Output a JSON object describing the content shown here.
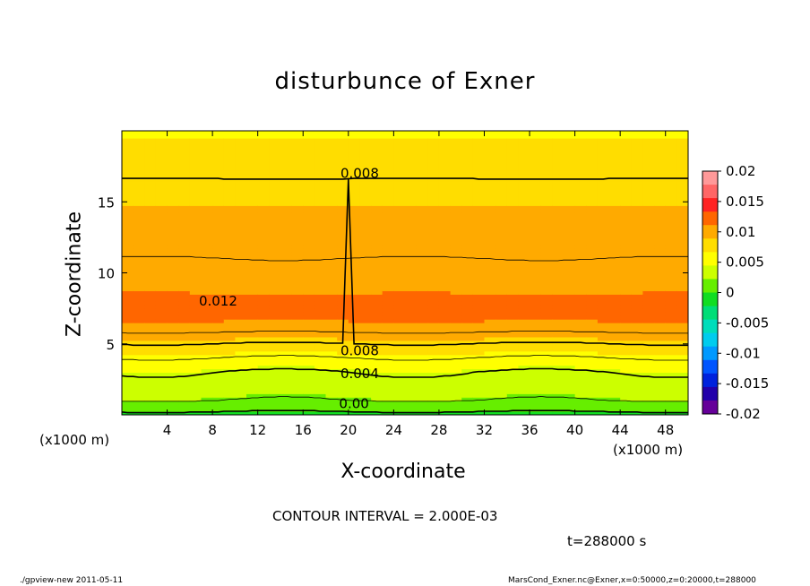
{
  "chart_data": {
    "type": "heatmap",
    "title": "disturbunce of Exner",
    "xlabel": "X-coordinate",
    "ylabel": "Z-coordinate",
    "x_unit_left": "(x1000 m)",
    "x_unit_right": "(x1000 m)",
    "xlim": [
      0,
      50
    ],
    "ylim": [
      0,
      20
    ],
    "x_ticks": [
      4,
      8,
      12,
      16,
      20,
      24,
      28,
      32,
      36,
      40,
      44,
      48
    ],
    "y_ticks": [
      5,
      10,
      15
    ],
    "contour_interval_text": "CONTOUR INTERVAL = 2.000E-03",
    "time_text": "t=288000 s",
    "colorbar": {
      "ticks": [
        "0.02",
        "0.015",
        "0.01",
        "0.005",
        "0",
        "-0.005",
        "-0.01",
        "-0.015",
        "-0.02"
      ],
      "values": [
        0.02,
        0.015,
        0.01,
        0.005,
        0,
        -0.005,
        -0.01,
        -0.015,
        -0.02
      ],
      "colors": [
        "#ff9999",
        "#ff6666",
        "#ff2222",
        "#ff6600",
        "#ffaa00",
        "#ffdd00",
        "#ffff00",
        "#ccff00",
        "#66ee00",
        "#11dd22",
        "#00dd77",
        "#00ddbb",
        "#00ccee",
        "#0099ff",
        "#0055ff",
        "#0022dd",
        "#2200aa",
        "#660099"
      ]
    },
    "z_levels": [
      0.0,
      1,
      2,
      3,
      4,
      5,
      6,
      7,
      8,
      9,
      10,
      12,
      15,
      17,
      20
    ],
    "z_values": [
      -0.0005,
      0.002,
      0.003,
      0.004,
      0.006,
      0.008,
      0.0105,
      0.0115,
      0.0115,
      0.0108,
      0.0102,
      0.0098,
      0.0088,
      0.0078,
      0.0065
    ],
    "contour_labels": [
      {
        "text": "0.008",
        "x": 21,
        "z": 17
      },
      {
        "text": "0.012",
        "x": 8.5,
        "z": 8.0
      },
      {
        "text": "0.008",
        "x": 21,
        "z": 4.5
      },
      {
        "text": "0.004",
        "x": 21,
        "z": 2.9
      },
      {
        "text": "0.00",
        "x": 20.5,
        "z": 0.8
      }
    ]
  },
  "footer": {
    "left": "./gpview-new  2011-05-11",
    "right": "MarsCond_Exner.nc@Exner,x=0:50000,z=0:20000,t=288000"
  }
}
